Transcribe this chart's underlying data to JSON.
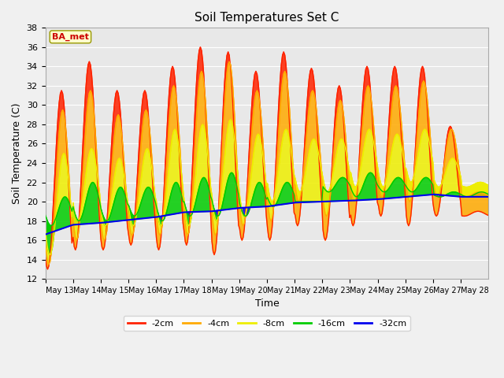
{
  "title": "Soil Temperatures Set C",
  "xlabel": "Time",
  "ylabel": "Soil Temperature (C)",
  "ylim": [
    12,
    38
  ],
  "yticks": [
    12,
    14,
    16,
    18,
    20,
    22,
    24,
    26,
    28,
    30,
    32,
    34,
    36,
    38
  ],
  "annotation": "BA_met",
  "fig_facecolor": "#f0f0f0",
  "ax_facecolor": "#e8e8e8",
  "colors": {
    "-2cm": "#ff2200",
    "-4cm": "#ffaa00",
    "-8cm": "#eeee00",
    "-16cm": "#00cc00",
    "-32cm": "#0000ee"
  },
  "n_days": 16,
  "pts_per_day": 24,
  "xtick_labels": [
    "May 13",
    "May 14",
    "May 15",
    "May 16",
    "May 17",
    "May 18",
    "May 19",
    "May 20",
    "May 21",
    "May 22",
    "May 23",
    "May 24",
    "May 25",
    "May 26",
    "May 27",
    "May 28"
  ],
  "day_peaks_2cm": [
    31.5,
    34.5,
    31.5,
    31.5,
    34.0,
    36.0,
    35.5,
    33.5,
    35.5,
    33.8,
    32.0,
    34.0,
    34.0,
    34.0,
    27.8,
    19.0
  ],
  "day_mins_2cm": [
    13.0,
    15.0,
    15.0,
    15.5,
    15.0,
    15.5,
    14.5,
    16.0,
    16.0,
    17.5,
    16.0,
    17.5,
    18.5,
    17.5,
    18.5,
    18.5
  ],
  "day_peaks_4cm": [
    29.5,
    31.5,
    29.0,
    29.5,
    32.0,
    33.5,
    34.5,
    31.5,
    33.5,
    31.5,
    30.5,
    32.0,
    32.0,
    32.5,
    27.5,
    21.0
  ],
  "day_mins_4cm": [
    13.5,
    16.0,
    16.0,
    16.5,
    16.5,
    16.5,
    16.5,
    17.5,
    18.0,
    20.0,
    18.5,
    20.0,
    20.5,
    20.0,
    20.5,
    20.5
  ],
  "day_peaks_8cm": [
    25.0,
    25.5,
    24.5,
    25.5,
    27.5,
    28.0,
    28.5,
    27.0,
    27.5,
    26.5,
    26.5,
    27.5,
    27.0,
    27.5,
    24.5,
    22.0
  ],
  "day_mins_8cm": [
    14.5,
    18.0,
    17.5,
    17.5,
    17.5,
    17.5,
    18.0,
    18.5,
    20.0,
    21.0,
    21.0,
    21.5,
    21.5,
    22.0,
    21.5,
    21.5
  ],
  "day_peaks_16cm": [
    20.5,
    22.0,
    21.5,
    21.5,
    22.0,
    22.5,
    23.0,
    22.0,
    22.0,
    20.0,
    22.5,
    23.0,
    22.5,
    22.5,
    21.0,
    21.0
  ],
  "day_mins_16cm": [
    17.5,
    18.0,
    18.0,
    18.5,
    18.0,
    18.5,
    18.5,
    18.5,
    19.5,
    20.0,
    21.0,
    20.5,
    21.0,
    21.0,
    20.5,
    20.5
  ],
  "day_means_32cm": [
    16.6,
    17.6,
    17.8,
    18.1,
    18.4,
    18.9,
    19.0,
    19.35,
    19.5,
    19.9,
    20.0,
    20.1,
    20.25,
    20.5,
    20.75,
    20.5
  ]
}
